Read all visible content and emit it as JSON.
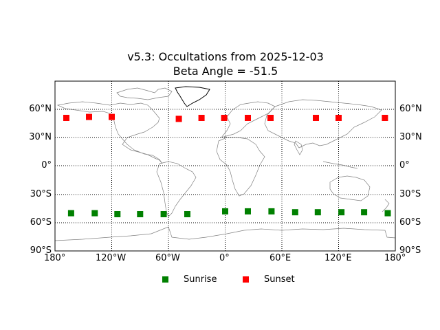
{
  "chart": {
    "title_line1": "v5.3: Occultations from 2025-12-03",
    "title_line2": "Beta Angle = -51.5"
  },
  "axes": {
    "y_left_ticks": [
      "60°N",
      "30°N",
      "0°",
      "30°S",
      "60°S",
      "90°S"
    ],
    "y_right_ticks": [
      "60°N",
      "30°N",
      "0°",
      "30°S",
      "60°S",
      "90°S"
    ],
    "x_ticks": [
      "180°",
      "120°W",
      "60°W",
      "0°",
      "60°E",
      "120°E",
      "180°"
    ]
  },
  "legend": {
    "sunrise_label": "Sunrise",
    "sunset_label": "Sunset"
  },
  "colors": {
    "sunrise": "#008000",
    "sunset": "#ff0000",
    "coastline": "#808080",
    "grid": "#000000"
  },
  "chart_data": {
    "type": "scatter",
    "title": "v5.3: Occultations from 2025-12-03\nBeta Angle = -51.5",
    "xlabel": "Longitude",
    "ylabel": "Latitude",
    "xlim": [
      -180,
      180
    ],
    "ylim": [
      -90,
      90
    ],
    "x_ticks": [
      -180,
      -120,
      -60,
      0,
      60,
      120,
      180
    ],
    "x_tick_labels": [
      "180°",
      "120°W",
      "60°W",
      "0°",
      "60°E",
      "120°E",
      "180°"
    ],
    "y_ticks": [
      -90,
      -60,
      -30,
      0,
      30,
      60
    ],
    "y_tick_labels": [
      "90°S",
      "60°S",
      "30°S",
      "0°",
      "30°N",
      "60°N"
    ],
    "grid": true,
    "background": "world map (cylindrical projection, coastlines and country borders)",
    "legend_position": "below plot, centered",
    "series": [
      {
        "name": "Sunrise",
        "color": "#008000",
        "marker": "square",
        "points": [
          {
            "lon": -163,
            "lat": -50
          },
          {
            "lon": -138,
            "lat": -50
          },
          {
            "lon": -114,
            "lat": -51
          },
          {
            "lon": -90,
            "lat": -51
          },
          {
            "lon": -65,
            "lat": -51
          },
          {
            "lon": -40,
            "lat": -51
          },
          {
            "lon": 0,
            "lat": -48
          },
          {
            "lon": 24,
            "lat": -48
          },
          {
            "lon": 49,
            "lat": -48
          },
          {
            "lon": 74,
            "lat": -49
          },
          {
            "lon": 98,
            "lat": -49
          },
          {
            "lon": 123,
            "lat": -49
          },
          {
            "lon": 147,
            "lat": -49
          },
          {
            "lon": 172,
            "lat": -50
          }
        ]
      },
      {
        "name": "Sunset",
        "color": "#ff0000",
        "marker": "square",
        "points": [
          {
            "lon": -168,
            "lat": 51
          },
          {
            "lon": -144,
            "lat": 52
          },
          {
            "lon": -120,
            "lat": 52
          },
          {
            "lon": -49,
            "lat": 50
          },
          {
            "lon": -25,
            "lat": 51
          },
          {
            "lon": -1,
            "lat": 51
          },
          {
            "lon": 24,
            "lat": 51
          },
          {
            "lon": 48,
            "lat": 51
          },
          {
            "lon": 96,
            "lat": 51
          },
          {
            "lon": 120,
            "lat": 51
          },
          {
            "lon": 169,
            "lat": 51
          }
        ]
      }
    ]
  }
}
